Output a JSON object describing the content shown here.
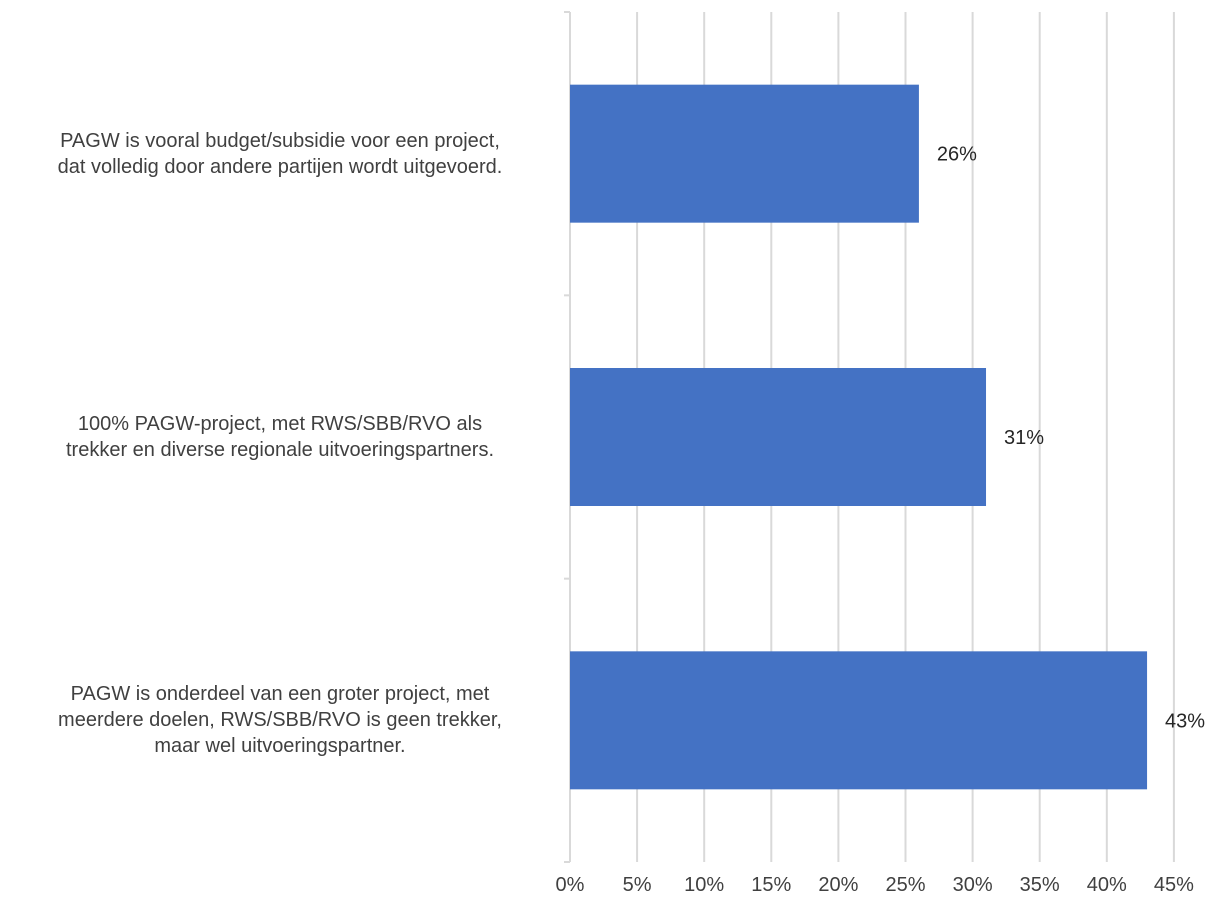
{
  "chart_data": {
    "type": "bar",
    "orientation": "horizontal",
    "categories": [
      "PAGW is vooral budget/subsidie voor een project, dat volledig door andere partijen wordt uitgevoerd.",
      "100% PAGW-project, met RWS/SBB/RVO als trekker en diverse regionale uitvoeringspartners.",
      "PAGW is onderdeel van een groter project, met meerdere doelen, RWS/SBB/RVO is geen trekker, maar wel uitvoeringspartner."
    ],
    "category_lines": [
      [
        "PAGW is vooral budget/subsidie voor een project,",
        "dat volledig door andere partijen wordt uitgevoerd."
      ],
      [
        "100% PAGW-project, met RWS/SBB/RVO als",
        "trekker en diverse regionale uitvoeringspartners."
      ],
      [
        "PAGW is onderdeel van een groter project, met",
        "meerdere doelen, RWS/SBB/RVO is geen trekker,",
        "maar wel uitvoeringspartner."
      ]
    ],
    "values": [
      26,
      31,
      43
    ],
    "data_labels": [
      "26%",
      "31%",
      "43%"
    ],
    "xlim": [
      0,
      45
    ],
    "x_ticks": [
      "0%",
      "5%",
      "10%",
      "15%",
      "20%",
      "25%",
      "30%",
      "35%",
      "40%",
      "45%"
    ],
    "grid": true,
    "bar_color": "#4472c4",
    "gridline_color": "#d9d9d9",
    "title": "",
    "xlabel": "",
    "ylabel": ""
  }
}
